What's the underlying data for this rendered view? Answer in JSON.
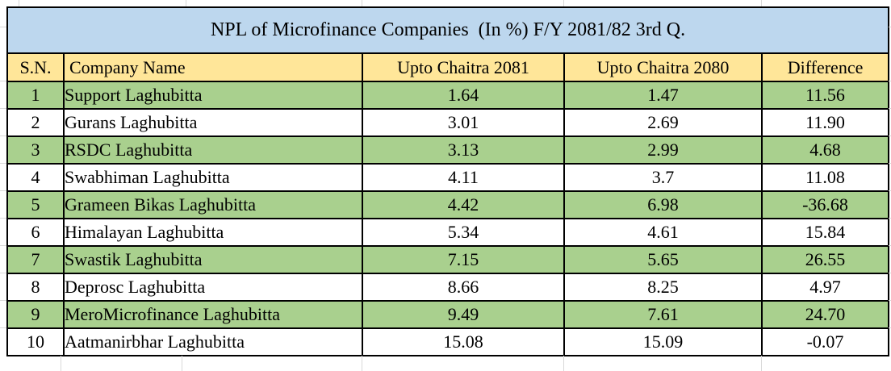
{
  "table": {
    "title": "NPL of Microfinance Companies  (In %) F/Y 2081/82 3rd Q.",
    "columns": [
      "S.N.",
      "Company Name",
      "Upto Chaitra 2081",
      "Upto Chaitra 2080",
      "Difference"
    ],
    "rows": [
      [
        "1",
        "Support Laghubitta",
        "1.64",
        "1.47",
        "11.56"
      ],
      [
        "2",
        "Gurans Laghubitta",
        "3.01",
        "2.69",
        "11.90"
      ],
      [
        "3",
        "RSDC Laghubitta",
        "3.13",
        "2.99",
        "4.68"
      ],
      [
        "4",
        "Swabhiman Laghubitta",
        "4.11",
        "3.7",
        "11.08"
      ],
      [
        "5",
        "Grameen Bikas Laghubitta",
        "4.42",
        "6.98",
        "-36.68"
      ],
      [
        "6",
        "Himalayan Laghubitta",
        "5.34",
        "4.61",
        "15.84"
      ],
      [
        "7",
        "Swastik Laghubitta",
        "7.15",
        "5.65",
        "26.55"
      ],
      [
        "8",
        "Deprosc Laghubitta",
        "8.66",
        "8.25",
        "4.97"
      ],
      [
        "9",
        "MeroMicrofinance Laghubitta",
        "9.49",
        "7.61",
        "24.70"
      ],
      [
        "10",
        "Aatmanirbhar Laghubitta",
        "15.08",
        "15.09",
        "-0.07"
      ]
    ]
  },
  "colors": {
    "title_bg": "#BDD7EE",
    "header_bg": "#FFE699",
    "row_green_bg": "#A9D08E",
    "row_white_bg": "#FFFFFF",
    "border": "#000000",
    "gridline": "#D9D9D9"
  }
}
